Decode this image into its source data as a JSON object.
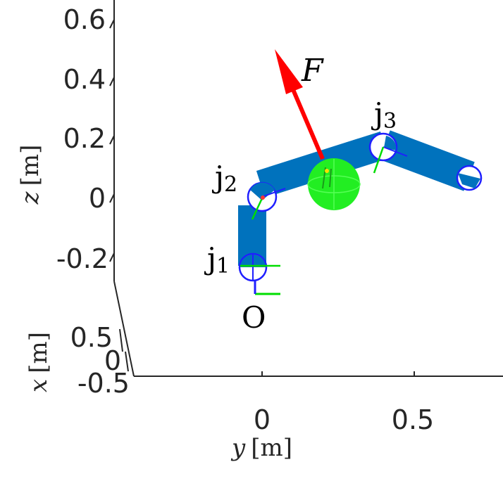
{
  "axes": {
    "z": {
      "variable": "z",
      "unit": "[m]",
      "ticks": [
        "0.6",
        "0.4",
        "0.2",
        "0",
        "-0.2"
      ]
    },
    "x": {
      "variable": "x",
      "unit": "[m]",
      "ticks": [
        "0.5",
        "0",
        "-0.5"
      ]
    },
    "y": {
      "variable": "y",
      "unit": "[m]",
      "ticks": [
        "0",
        "0.5"
      ]
    }
  },
  "labels": {
    "force": "F",
    "origin": "O",
    "joint1": {
      "letter": "j",
      "sub": "1"
    },
    "joint2": {
      "letter": "j",
      "sub": "2"
    },
    "joint3": {
      "letter": "j",
      "sub": "3"
    }
  },
  "colors": {
    "link": "#0072BD",
    "joint_circle": "#1f1fff",
    "force_arrow": "#ff0000",
    "payload_sphere": "#22ee22",
    "frame_green": "#00dd00",
    "axis_line": "#262626"
  }
}
